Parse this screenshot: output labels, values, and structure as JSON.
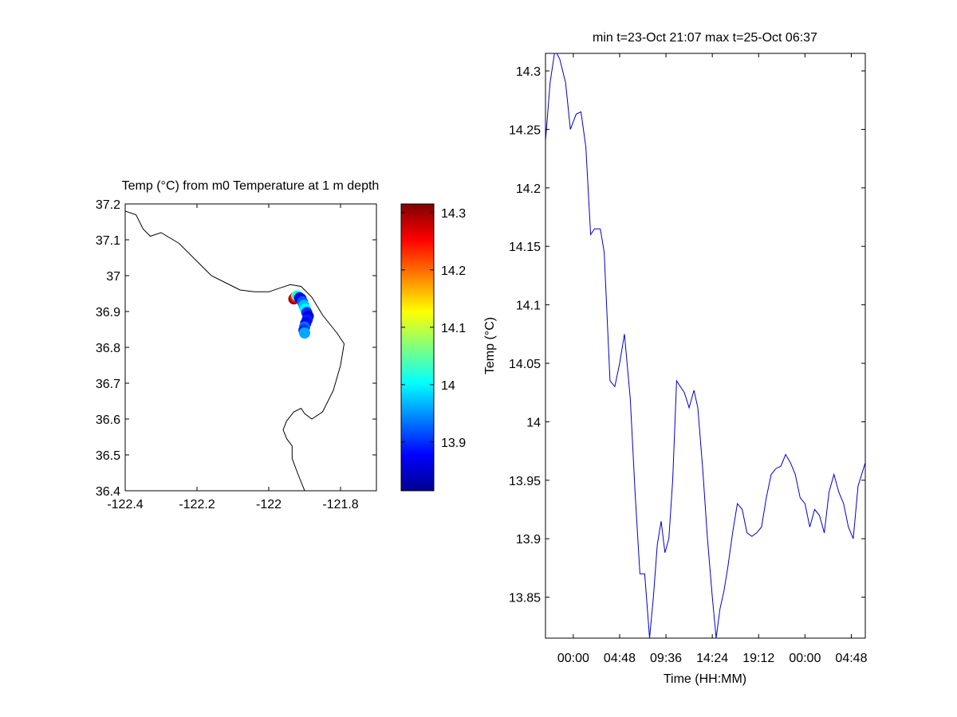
{
  "chart_data": [
    {
      "type": "scatter",
      "title": "Temp (°C) from m0 Temperature at 1 m depth",
      "xlim": [
        -122.4,
        -121.7
      ],
      "ylim": [
        36.4,
        37.2
      ],
      "xticks": [
        -122.4,
        -122.2,
        -122,
        -121.8
      ],
      "xtick_labels": [
        "-122.4",
        "-122.2",
        "-122",
        "-121.8"
      ],
      "yticks": [
        36.4,
        36.5,
        36.6,
        36.7,
        36.8,
        36.9,
        37,
        37.1,
        37.2
      ],
      "ytick_labels": [
        "36.4",
        "36.5",
        "36.6",
        "36.7",
        "36.8",
        "36.9",
        "37",
        "37.1",
        "37.2"
      ],
      "coastline": [
        [
          -122.4,
          37.18
        ],
        [
          -122.37,
          37.17
        ],
        [
          -122.35,
          37.13
        ],
        [
          -122.33,
          37.11
        ],
        [
          -122.3,
          37.12
        ],
        [
          -122.25,
          37.09
        ],
        [
          -122.2,
          37.04
        ],
        [
          -122.16,
          37.0
        ],
        [
          -122.12,
          36.98
        ],
        [
          -122.08,
          36.96
        ],
        [
          -122.04,
          36.955
        ],
        [
          -122.0,
          36.955
        ],
        [
          -121.97,
          36.965
        ],
        [
          -121.94,
          36.975
        ],
        [
          -121.91,
          36.97
        ],
        [
          -121.88,
          36.94
        ],
        [
          -121.85,
          36.89
        ],
        [
          -121.81,
          36.84
        ],
        [
          -121.79,
          36.81
        ],
        [
          -121.8,
          36.75
        ],
        [
          -121.82,
          36.68
        ],
        [
          -121.85,
          36.62
        ],
        [
          -121.88,
          36.6
        ],
        [
          -121.9,
          36.615
        ],
        [
          -121.91,
          36.63
        ],
        [
          -121.93,
          36.62
        ],
        [
          -121.95,
          36.595
        ],
        [
          -121.96,
          36.57
        ],
        [
          -121.95,
          36.545
        ],
        [
          -121.935,
          36.525
        ],
        [
          -121.935,
          36.49
        ],
        [
          -121.92,
          36.45
        ],
        [
          -121.9,
          36.4
        ]
      ],
      "points": [
        {
          "lon": -121.93,
          "lat": 36.935,
          "temp": 14.3
        },
        {
          "lon": -121.926,
          "lat": 36.94,
          "temp": 14.25
        },
        {
          "lon": -121.922,
          "lat": 36.944,
          "temp": 14.05
        },
        {
          "lon": -121.918,
          "lat": 36.942,
          "temp": 14.0
        },
        {
          "lon": -121.914,
          "lat": 36.938,
          "temp": 13.85
        },
        {
          "lon": -121.91,
          "lat": 36.935,
          "temp": 13.88
        },
        {
          "lon": -121.906,
          "lat": 36.927,
          "temp": 13.92
        },
        {
          "lon": -121.902,
          "lat": 36.917,
          "temp": 13.97
        },
        {
          "lon": -121.898,
          "lat": 36.907,
          "temp": 14.0
        },
        {
          "lon": -121.894,
          "lat": 36.897,
          "temp": 13.9
        },
        {
          "lon": -121.89,
          "lat": 36.887,
          "temp": 13.86
        },
        {
          "lon": -121.893,
          "lat": 36.877,
          "temp": 13.89
        },
        {
          "lon": -121.897,
          "lat": 36.867,
          "temp": 13.87
        },
        {
          "lon": -121.9,
          "lat": 36.857,
          "temp": 13.93
        },
        {
          "lon": -121.902,
          "lat": 36.848,
          "temp": 13.9
        },
        {
          "lon": -121.9,
          "lat": 36.84,
          "temp": 13.96
        }
      ],
      "colorbar": {
        "range": [
          13.815,
          14.315
        ],
        "ticks": [
          13.9,
          14,
          14.1,
          14.2,
          14.3
        ],
        "tick_labels": [
          "13.9",
          "14",
          "14.1",
          "14.2",
          "14.3"
        ],
        "colormap": "jet"
      }
    },
    {
      "type": "line",
      "title": "min t=23-Oct 21:07 max t=25-Oct 06:37",
      "xlabel": "Time (HH:MM)",
      "ylabel": "Temp (°C)",
      "line_color": "#0000cc",
      "xlim": [
        -2.88,
        30.25
      ],
      "ylim": [
        13.815,
        14.315
      ],
      "xticks": [
        0,
        4.8,
        9.6,
        14.4,
        19.2,
        24,
        28.8
      ],
      "xtick_labels": [
        "00:00",
        "04:48",
        "09:36",
        "14:24",
        "19:12",
        "00:00",
        "04:48"
      ],
      "yticks": [
        13.85,
        13.9,
        13.95,
        14,
        14.05,
        14.1,
        14.15,
        14.2,
        14.25,
        14.3
      ],
      "ytick_labels": [
        "13.85",
        "13.9",
        "13.95",
        "14",
        "14.05",
        "14.1",
        "14.15",
        "14.2",
        "14.25",
        "14.3"
      ],
      "series": [
        {
          "x": [
            -2.88,
            -2.4,
            -1.9,
            -1.4,
            -0.8,
            -0.3,
            0.3,
            0.8,
            1.3,
            1.8,
            2.2,
            2.8,
            3.2,
            3.8,
            4.3,
            4.8,
            5.3,
            5.9,
            6.4,
            6.9,
            7.4,
            7.9,
            8.3,
            8.7,
            9.1,
            9.5,
            9.9,
            10.3,
            10.7,
            11.1,
            11.5,
            12.0,
            12.5,
            12.9,
            13.4,
            13.9,
            14.4,
            14.8,
            15.2,
            15.6,
            16.0,
            16.5,
            17.0,
            17.5,
            18.0,
            18.5,
            19.0,
            19.5,
            20.0,
            20.5,
            21.0,
            21.5,
            22.0,
            22.5,
            23.0,
            23.5,
            24.0,
            24.5,
            25.0,
            25.5,
            26.0,
            26.5,
            27.0,
            27.5,
            28.0,
            28.5,
            29.0,
            29.5,
            30.25
          ],
          "y": [
            14.24,
            14.29,
            14.318,
            14.31,
            14.29,
            14.25,
            14.263,
            14.265,
            14.235,
            14.16,
            14.165,
            14.165,
            14.145,
            14.035,
            14.03,
            14.05,
            14.075,
            14.02,
            13.94,
            13.87,
            13.87,
            13.815,
            13.85,
            13.895,
            13.915,
            13.888,
            13.9,
            13.95,
            14.035,
            14.03,
            14.025,
            14.012,
            14.027,
            14.012,
            13.96,
            13.9,
            13.85,
            13.815,
            13.84,
            13.855,
            13.875,
            13.905,
            13.93,
            13.925,
            13.905,
            13.902,
            13.905,
            13.91,
            13.935,
            13.955,
            13.96,
            13.962,
            13.972,
            13.965,
            13.955,
            13.935,
            13.93,
            13.91,
            13.925,
            13.92,
            13.905,
            13.94,
            13.955,
            13.94,
            13.93,
            13.91,
            13.9,
            13.945,
            13.965
          ]
        }
      ]
    }
  ]
}
